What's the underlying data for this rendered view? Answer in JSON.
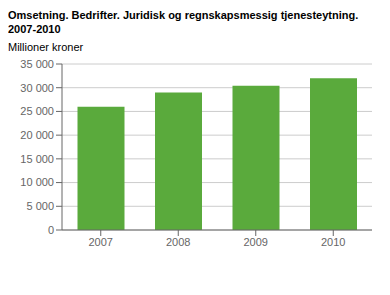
{
  "chart_data": {
    "type": "bar",
    "title": "Omsetning. Bedrifter. Juridisk og regnskapsmessig tjenesteytning.",
    "subtitle": "2007-2010",
    "ylabel": "Millioner kroner",
    "categories": [
      "2007",
      "2008",
      "2009",
      "2010"
    ],
    "values": [
      26000,
      29000,
      30400,
      32000
    ],
    "color": "#5aaa3c",
    "ylim": [
      0,
      35000
    ],
    "yticks": [
      0,
      {
        "value": 5000,
        "label": "5 000"
      },
      {
        "value": 10000,
        "label": "10 000"
      },
      {
        "value": 15000,
        "label": "15 000"
      },
      {
        "value": 20000,
        "label": "20 000"
      },
      {
        "value": 25000,
        "label": "25 000"
      },
      {
        "value": 30000,
        "label": "30 000"
      },
      {
        "value": 35000,
        "label": "35 000"
      }
    ],
    "grid": true
  }
}
